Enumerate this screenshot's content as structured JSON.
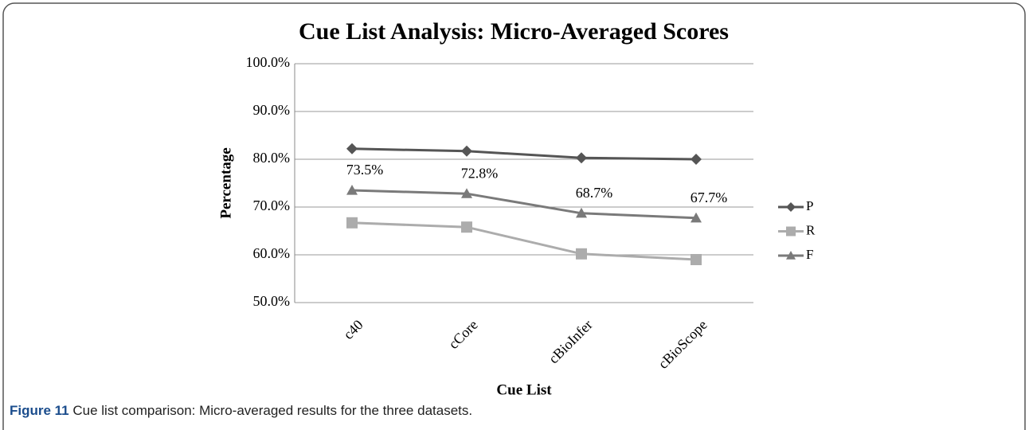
{
  "chart_data": {
    "type": "line",
    "title": "Cue List Analysis: Micro-Averaged Scores",
    "x_label": "Cue List",
    "y_label": "Percentage",
    "categories": [
      "c40",
      "cCore",
      "cBioInfer",
      "cBioScope"
    ],
    "series": [
      {
        "name": "P",
        "color": "#555555",
        "marker": "diamond",
        "values": [
          82.2,
          81.7,
          80.3,
          80.0
        ]
      },
      {
        "name": "R",
        "color": "#acacac",
        "marker": "square",
        "values": [
          66.7,
          65.8,
          60.2,
          59.0
        ]
      },
      {
        "name": "F",
        "color": "#7a7a7a",
        "marker": "triangle",
        "values": [
          73.5,
          72.8,
          68.7,
          67.7
        ],
        "value_labels": [
          "73.5%",
          "72.8%",
          "68.7%",
          "67.7%"
        ]
      }
    ],
    "ylim": [
      50,
      100
    ],
    "yticks": [
      {
        "value": 50,
        "label": "50.0%"
      },
      {
        "value": 60,
        "label": "60.0%"
      },
      {
        "value": 70,
        "label": "70.0%"
      },
      {
        "value": 80,
        "label": "80.0%"
      },
      {
        "value": 90,
        "label": "90.0%"
      },
      {
        "value": 100,
        "label": "100.0%"
      }
    ],
    "grid": true,
    "legend": "right"
  },
  "caption": {
    "label": "Figure 11",
    "text": "Cue list comparison: Micro-averaged results for the three datasets."
  }
}
